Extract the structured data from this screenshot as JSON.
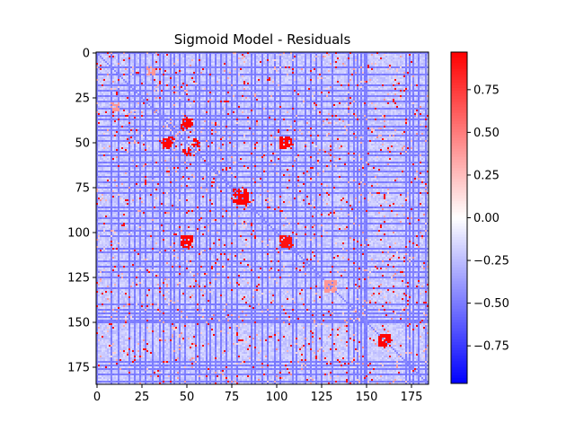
{
  "chart_data": {
    "type": "heatmap",
    "title": "Sigmoid Model - Residuals",
    "xlabel": "",
    "ylabel": "",
    "matrix_size": [
      185,
      185
    ],
    "x_ticks": [
      0,
      25,
      50,
      75,
      100,
      125,
      150,
      175
    ],
    "y_ticks": [
      0,
      25,
      50,
      75,
      100,
      125,
      150,
      175
    ],
    "colorbar": {
      "colormap": "bwr",
      "vmin": -0.97,
      "vmax": 0.97,
      "ticks": [
        0.75,
        0.5,
        0.25,
        0.0,
        -0.25,
        -0.5,
        -0.75
      ],
      "tick_labels": [
        "0.75",
        "0.50",
        "0.25",
        "0.00",
        "−0.25",
        "−0.50",
        "−0.75"
      ]
    },
    "dominant_value": -0.45,
    "negative_bands": [
      0,
      8,
      12,
      18,
      21,
      24,
      27,
      31,
      35,
      37,
      41,
      43,
      46,
      49,
      55,
      57,
      61,
      63,
      66,
      69,
      72,
      75,
      78,
      86,
      88,
      92,
      95,
      99,
      102,
      109,
      111,
      116,
      119,
      122,
      125,
      131,
      140,
      143,
      145,
      147,
      149,
      150,
      172,
      174,
      176,
      179,
      183
    ],
    "positive_clusters": [
      {
        "center": [
          50,
          40
        ],
        "radius": 3,
        "value": 0.95
      },
      {
        "center": [
          55,
          50
        ],
        "radius": 2,
        "value": 0.95
      },
      {
        "center": [
          105,
          50
        ],
        "radius": 3,
        "value": 0.95
      },
      {
        "center": [
          50,
          105
        ],
        "radius": 3,
        "value": 0.95
      },
      {
        "center": [
          105,
          105
        ],
        "radius": 3,
        "value": 0.9
      },
      {
        "center": [
          160,
          160
        ],
        "radius": 3,
        "value": 0.95
      },
      {
        "center": [
          130,
          130
        ],
        "radius": 3,
        "value": 0.4
      },
      {
        "center": [
          10,
          30
        ],
        "radius": 2,
        "value": 0.4
      },
      {
        "center": [
          30,
          10
        ],
        "radius": 2,
        "value": 0.4
      },
      {
        "center": [
          80,
          80
        ],
        "radius": 4,
        "value": 0.95
      }
    ]
  }
}
